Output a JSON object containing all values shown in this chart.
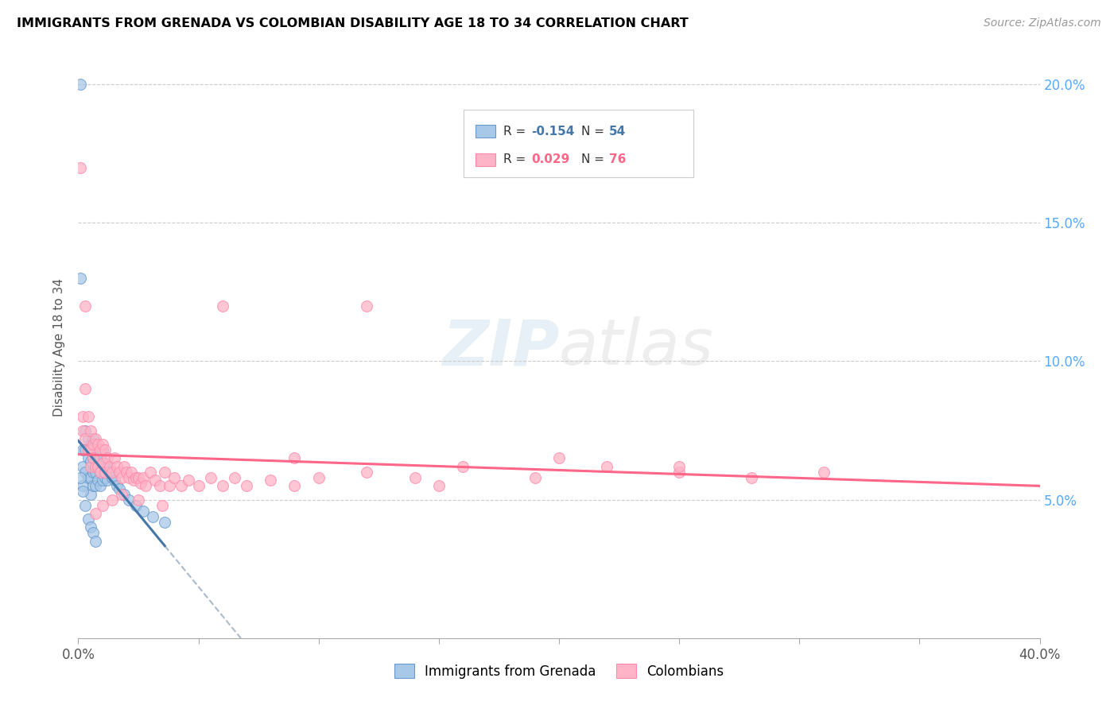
{
  "title": "IMMIGRANTS FROM GRENADA VS COLOMBIAN DISABILITY AGE 18 TO 34 CORRELATION CHART",
  "source": "Source: ZipAtlas.com",
  "ylabel": "Disability Age 18 to 34",
  "xlim": [
    0.0,
    0.4
  ],
  "ylim": [
    0.0,
    0.21
  ],
  "xticks": [
    0.0,
    0.05,
    0.1,
    0.15,
    0.2,
    0.25,
    0.3,
    0.35,
    0.4
  ],
  "yticks": [
    0.0,
    0.05,
    0.1,
    0.15,
    0.2
  ],
  "color_blue": "#a8c8e8",
  "color_pink": "#ffb3c6",
  "edge_blue": "#6699cc",
  "edge_pink": "#ff88aa",
  "trendline_blue": "#4477aa",
  "trendline_pink": "#ff6688",
  "trendline_dashed_color": "#aabbcc",
  "watermark_color": "#c8dff0",
  "grenada_x": [
    0.001,
    0.001,
    0.002,
    0.002,
    0.002,
    0.003,
    0.003,
    0.003,
    0.004,
    0.004,
    0.004,
    0.005,
    0.005,
    0.005,
    0.005,
    0.006,
    0.006,
    0.006,
    0.006,
    0.007,
    0.007,
    0.007,
    0.007,
    0.008,
    0.008,
    0.008,
    0.009,
    0.009,
    0.009,
    0.01,
    0.01,
    0.01,
    0.011,
    0.011,
    0.012,
    0.012,
    0.013,
    0.014,
    0.015,
    0.016,
    0.017,
    0.019,
    0.021,
    0.024,
    0.027,
    0.031,
    0.036,
    0.001,
    0.002,
    0.003,
    0.004,
    0.005,
    0.006,
    0.007
  ],
  "grenada_y": [
    0.2,
    0.13,
    0.068,
    0.062,
    0.055,
    0.075,
    0.068,
    0.06,
    0.072,
    0.065,
    0.058,
    0.07,
    0.064,
    0.058,
    0.052,
    0.072,
    0.065,
    0.06,
    0.055,
    0.07,
    0.065,
    0.06,
    0.055,
    0.068,
    0.062,
    0.057,
    0.065,
    0.06,
    0.055,
    0.068,
    0.062,
    0.057,
    0.063,
    0.058,
    0.062,
    0.057,
    0.06,
    0.058,
    0.057,
    0.055,
    0.054,
    0.052,
    0.05,
    0.048,
    0.046,
    0.044,
    0.042,
    0.058,
    0.053,
    0.048,
    0.043,
    0.04,
    0.038,
    0.035
  ],
  "colombian_x": [
    0.001,
    0.002,
    0.002,
    0.003,
    0.003,
    0.004,
    0.004,
    0.005,
    0.005,
    0.005,
    0.006,
    0.006,
    0.007,
    0.007,
    0.008,
    0.008,
    0.009,
    0.009,
    0.01,
    0.01,
    0.011,
    0.011,
    0.012,
    0.013,
    0.014,
    0.015,
    0.016,
    0.017,
    0.018,
    0.019,
    0.02,
    0.021,
    0.022,
    0.023,
    0.024,
    0.025,
    0.026,
    0.027,
    0.028,
    0.03,
    0.032,
    0.034,
    0.036,
    0.038,
    0.04,
    0.043,
    0.046,
    0.05,
    0.055,
    0.06,
    0.065,
    0.07,
    0.08,
    0.09,
    0.1,
    0.12,
    0.14,
    0.16,
    0.19,
    0.22,
    0.25,
    0.28,
    0.31,
    0.003,
    0.12,
    0.2,
    0.06,
    0.09,
    0.15,
    0.25,
    0.035,
    0.025,
    0.018,
    0.014,
    0.01,
    0.007
  ],
  "colombian_y": [
    0.17,
    0.08,
    0.075,
    0.09,
    0.072,
    0.08,
    0.068,
    0.075,
    0.068,
    0.062,
    0.07,
    0.065,
    0.072,
    0.062,
    0.07,
    0.062,
    0.068,
    0.06,
    0.07,
    0.063,
    0.068,
    0.06,
    0.065,
    0.062,
    0.06,
    0.065,
    0.062,
    0.06,
    0.058,
    0.062,
    0.06,
    0.058,
    0.06,
    0.057,
    0.058,
    0.058,
    0.056,
    0.058,
    0.055,
    0.06,
    0.057,
    0.055,
    0.06,
    0.055,
    0.058,
    0.055,
    0.057,
    0.055,
    0.058,
    0.055,
    0.058,
    0.055,
    0.057,
    0.055,
    0.058,
    0.06,
    0.058,
    0.062,
    0.058,
    0.062,
    0.06,
    0.058,
    0.06,
    0.12,
    0.12,
    0.065,
    0.12,
    0.065,
    0.055,
    0.062,
    0.048,
    0.05,
    0.052,
    0.05,
    0.048,
    0.045
  ]
}
